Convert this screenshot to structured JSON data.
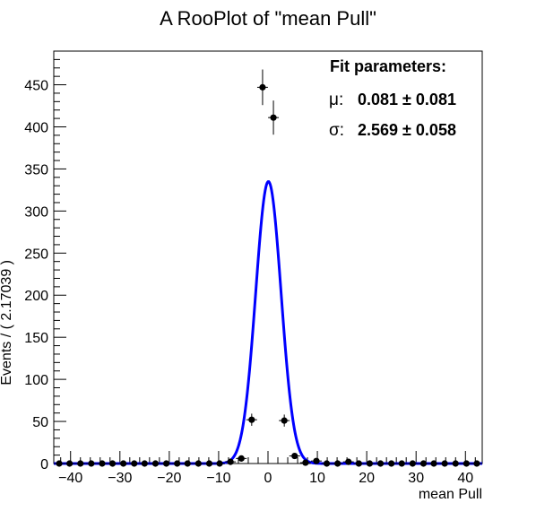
{
  "chart_data": {
    "type": "scatter",
    "title": "A RooPlot of \"mean Pull\"",
    "xlabel": "mean Pull",
    "ylabel": "Events / ( 2.17039 )",
    "xlim": [
      -43.4,
      43.4
    ],
    "ylim": [
      0,
      490
    ],
    "xticks": [
      -40,
      -30,
      -20,
      -10,
      0,
      10,
      20,
      30,
      40
    ],
    "xtick_labels": [
      "−40",
      "−30",
      "−20",
      "−10",
      "0",
      "10",
      "20",
      "30",
      "40"
    ],
    "yticks": [
      0,
      50,
      100,
      150,
      200,
      250,
      300,
      350,
      400,
      450
    ],
    "ytick_labels": [
      "0",
      "50",
      "100",
      "150",
      "200",
      "250",
      "300",
      "350",
      "400",
      "450"
    ],
    "grid": false,
    "bin_width": 2.17039,
    "series": [
      {
        "kind": "data-points-with-errors",
        "x": [
          -42.3,
          -40.2,
          -38.0,
          -35.8,
          -33.6,
          -31.5,
          -29.3,
          -27.1,
          -25.0,
          -22.8,
          -20.6,
          -18.4,
          -16.3,
          -14.1,
          -11.9,
          -9.8,
          -7.6,
          -5.4,
          -3.3,
          -1.1,
          1.1,
          3.3,
          5.4,
          7.6,
          9.8,
          11.9,
          14.1,
          16.3,
          18.4,
          20.6,
          22.8,
          25.0,
          27.1,
          29.3,
          31.5,
          33.6,
          35.8,
          38.0,
          40.2,
          42.3
        ],
        "y": [
          0,
          0,
          0,
          0,
          0,
          0,
          0,
          0,
          0,
          0,
          0,
          0,
          0,
          0,
          0,
          0,
          2,
          6,
          52,
          447,
          411,
          51,
          9,
          1,
          3,
          0,
          0,
          2,
          0,
          0,
          0,
          0,
          0,
          0,
          0,
          0,
          0,
          0,
          0,
          0
        ]
      },
      {
        "kind": "fit-gaussian",
        "color": "#0000ff",
        "mean": 0.081,
        "sigma": 2.569,
        "peak": 335
      }
    ],
    "legend": {
      "placement": "top-right",
      "title": "Fit parameters:",
      "lines": [
        {
          "symbol": "μ:",
          "value": "0.081 ± 0.081"
        },
        {
          "symbol": "σ:",
          "value": "2.569 ± 0.058"
        }
      ]
    }
  }
}
